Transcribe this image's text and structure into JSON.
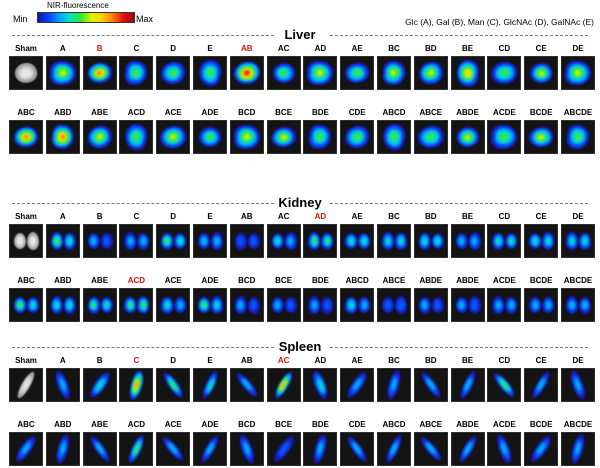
{
  "legend": {
    "title": "NIR-fluorescence",
    "min_label": "Min",
    "max_label": "Max"
  },
  "sugar_key": "Glc (A), Gal (B), Man (C), GlcNAc (D), GalNAc (E)",
  "organs": [
    {
      "title": "Liver",
      "shape": "liver",
      "rows": [
        [
          {
            "label": "Sham",
            "level": 0,
            "sham": true
          },
          {
            "label": "A",
            "level": 0.62
          },
          {
            "label": "B",
            "level": 0.85,
            "highlight": true
          },
          {
            "label": "C",
            "level": 0.45
          },
          {
            "label": "D",
            "level": 0.5
          },
          {
            "label": "E",
            "level": 0.5
          },
          {
            "label": "AB",
            "level": 0.9,
            "highlight": true
          },
          {
            "label": "AC",
            "level": 0.48
          },
          {
            "label": "AD",
            "level": 0.58
          },
          {
            "label": "AE",
            "level": 0.55
          },
          {
            "label": "BC",
            "level": 0.6
          },
          {
            "label": "BD",
            "level": 0.62
          },
          {
            "label": "BE",
            "level": 0.68
          },
          {
            "label": "CD",
            "level": 0.5
          },
          {
            "label": "CE",
            "level": 0.62
          },
          {
            "label": "DE",
            "level": 0.58
          }
        ],
        [
          {
            "label": "ABC",
            "level": 0.82
          },
          {
            "label": "ABD",
            "level": 0.85
          },
          {
            "label": "ABE",
            "level": 0.6
          },
          {
            "label": "ACD",
            "level": 0.55
          },
          {
            "label": "ACE",
            "level": 0.6
          },
          {
            "label": "ADE",
            "level": 0.5
          },
          {
            "label": "BCD",
            "level": 0.6
          },
          {
            "label": "BCE",
            "level": 0.62
          },
          {
            "label": "BDE",
            "level": 0.5
          },
          {
            "label": "CDE",
            "level": 0.55
          },
          {
            "label": "ABCD",
            "level": 0.55
          },
          {
            "label": "ABCE",
            "level": 0.5
          },
          {
            "label": "ABDE",
            "level": 0.6
          },
          {
            "label": "ACDE",
            "level": 0.55
          },
          {
            "label": "BCDE",
            "level": 0.58
          },
          {
            "label": "ABCDE",
            "level": 0.55
          }
        ]
      ]
    },
    {
      "title": "Kidney",
      "shape": "kidney",
      "rows": [
        [
          {
            "label": "Sham",
            "level": 0,
            "sham": true
          },
          {
            "label": "A",
            "level": 0.45
          },
          {
            "label": "B",
            "level": 0.25
          },
          {
            "label": "C",
            "level": 0.3
          },
          {
            "label": "D",
            "level": 0.45
          },
          {
            "label": "E",
            "level": 0.3
          },
          {
            "label": "AB",
            "level": 0.2
          },
          {
            "label": "AC",
            "level": 0.35
          },
          {
            "label": "AD",
            "level": 0.5,
            "highlight": true
          },
          {
            "label": "AE",
            "level": 0.42
          },
          {
            "label": "BC",
            "level": 0.4
          },
          {
            "label": "BD",
            "level": 0.42
          },
          {
            "label": "BE",
            "level": 0.3
          },
          {
            "label": "CD",
            "level": 0.42
          },
          {
            "label": "CE",
            "level": 0.4
          },
          {
            "label": "DE",
            "level": 0.42
          }
        ],
        [
          {
            "label": "ABC",
            "level": 0.48
          },
          {
            "label": "ABD",
            "level": 0.4
          },
          {
            "label": "ABE",
            "level": 0.45
          },
          {
            "label": "ACD",
            "level": 0.52,
            "highlight": true
          },
          {
            "label": "ACE",
            "level": 0.35
          },
          {
            "label": "ADE",
            "level": 0.45
          },
          {
            "label": "BCD",
            "level": 0.25
          },
          {
            "label": "BCE",
            "level": 0.25
          },
          {
            "label": "BDE",
            "level": 0.25
          },
          {
            "label": "ABCD",
            "level": 0.35
          },
          {
            "label": "ABCE",
            "level": 0.2
          },
          {
            "label": "ABDE",
            "level": 0.25
          },
          {
            "label": "ABDE",
            "level": 0.25
          },
          {
            "label": "ACDE",
            "level": 0.3
          },
          {
            "label": "BCDE",
            "level": 0.28
          },
          {
            "label": "ABCDE",
            "level": 0.3
          }
        ]
      ]
    },
    {
      "title": "Spleen",
      "shape": "spleen",
      "rows": [
        [
          {
            "label": "Sham",
            "level": 0,
            "sham": true
          },
          {
            "label": "A",
            "level": 0.3
          },
          {
            "label": "B",
            "level": 0.35
          },
          {
            "label": "C",
            "level": 0.8,
            "highlight": true
          },
          {
            "label": "D",
            "level": 0.45
          },
          {
            "label": "E",
            "level": 0.35
          },
          {
            "label": "AB",
            "level": 0.25
          },
          {
            "label": "AC",
            "level": 0.85,
            "highlight": true
          },
          {
            "label": "AD",
            "level": 0.35
          },
          {
            "label": "AE",
            "level": 0.3
          },
          {
            "label": "BC",
            "level": 0.28
          },
          {
            "label": "BD",
            "level": 0.28
          },
          {
            "label": "BE",
            "level": 0.3
          },
          {
            "label": "CD",
            "level": 0.55
          },
          {
            "label": "CE",
            "level": 0.3
          },
          {
            "label": "DE",
            "level": 0.25
          }
        ],
        [
          {
            "label": "ABC",
            "level": 0.3
          },
          {
            "label": "ABD",
            "level": 0.3
          },
          {
            "label": "ABE",
            "level": 0.3
          },
          {
            "label": "ACD",
            "level": 0.45
          },
          {
            "label": "ACE",
            "level": 0.28
          },
          {
            "label": "ADE",
            "level": 0.28
          },
          {
            "label": "BCD",
            "level": 0.25
          },
          {
            "label": "BCE",
            "level": 0.2
          },
          {
            "label": "BDE",
            "level": 0.25
          },
          {
            "label": "CDE",
            "level": 0.28
          },
          {
            "label": "ABCD",
            "level": 0.25
          },
          {
            "label": "ABCE",
            "level": 0.25
          },
          {
            "label": "ABDE",
            "level": 0.25
          },
          {
            "label": "ACDE",
            "level": 0.25
          },
          {
            "label": "BCDE",
            "level": 0.25
          },
          {
            "label": "ABCDE",
            "level": 0.3
          }
        ]
      ]
    }
  ]
}
